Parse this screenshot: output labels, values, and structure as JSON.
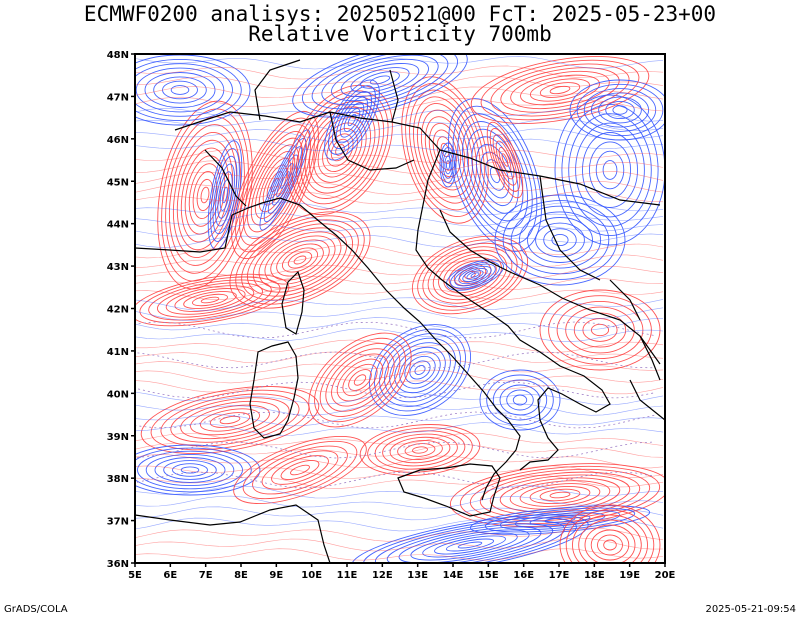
{
  "title_line1": "ECMWF0200 analisys: 20250521@00 FcT: 2025-05-23+00",
  "title_line2": "Relative Vorticity 700mb",
  "footer_left": "GrADS/COLA",
  "footer_right": "2025-05-21-09:54",
  "map": {
    "lon_range": [
      5,
      20
    ],
    "lat_range": [
      36,
      48
    ],
    "lon_ticks": [
      "5E",
      "6E",
      "7E",
      "8E",
      "9E",
      "10E",
      "11E",
      "12E",
      "13E",
      "14E",
      "15E",
      "16E",
      "17E",
      "18E",
      "19E",
      "20E"
    ],
    "lat_ticks": [
      "36N",
      "37N",
      "38N",
      "39N",
      "40N",
      "41N",
      "42N",
      "43N",
      "44N",
      "45N",
      "46N",
      "47N",
      "48N"
    ],
    "colors": {
      "positive_vorticity": "#ff4040",
      "negative_vorticity": "#3355ff",
      "zero_line": "#a080c8",
      "borders": "#000000"
    }
  }
}
